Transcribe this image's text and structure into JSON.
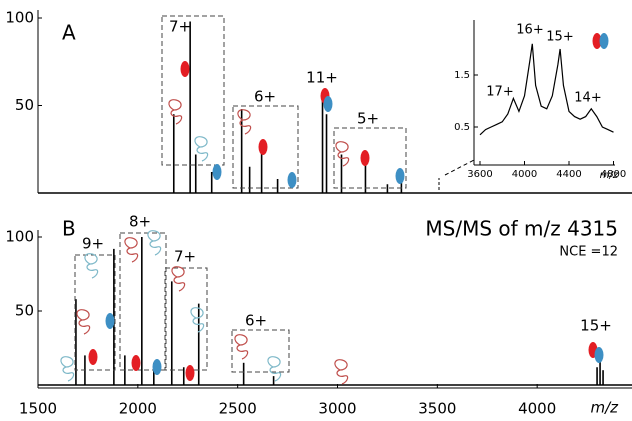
{
  "chart_data": [
    {
      "type": "stick",
      "panel_label": "A",
      "color": "#000000",
      "x": [
        2180,
        2262,
        2290,
        2370,
        2520,
        2560,
        2620,
        2700,
        2925,
        2945,
        3020,
        3140,
        3250,
        3320
      ],
      "values": [
        45,
        98,
        22,
        12,
        48,
        15,
        25,
        8,
        58,
        45,
        22,
        20,
        5,
        8
      ],
      "xlim": [
        1500,
        4500
      ],
      "ylim": [
        0,
        100
      ],
      "yticks": [
        50,
        100
      ],
      "annotations": [
        "7+",
        "6+",
        "11+",
        "5+"
      ]
    },
    {
      "type": "stick",
      "panel_label": "B",
      "color": "#000000",
      "title": "MS/MS of m/z 4315",
      "subtitle": "NCE =12",
      "x": [
        1690,
        1735,
        1880,
        1935,
        2020,
        2080,
        2170,
        2230,
        2305,
        2530,
        2680,
        4300,
        4315,
        4330
      ],
      "values": [
        58,
        20,
        92,
        20,
        100,
        15,
        70,
        12,
        55,
        15,
        6,
        12,
        16,
        10
      ],
      "xlim": [
        1500,
        4500
      ],
      "ylim": [
        0,
        100
      ],
      "yticks": [
        50,
        100
      ],
      "xticks": [
        1500,
        2000,
        2500,
        3000,
        3500,
        4000
      ],
      "x_label": "m/z",
      "annotations": [
        "9+",
        "8+",
        "7+",
        "6+",
        "15+"
      ]
    },
    {
      "type": "line",
      "color": "#000000",
      "x": [
        3600,
        3650,
        3700,
        3750,
        3800,
        3850,
        3900,
        3950,
        4000,
        4050,
        4070,
        4100,
        4150,
        4200,
        4250,
        4300,
        4320,
        4350,
        4400,
        4450,
        4500,
        4550,
        4600,
        4650,
        4700,
        4750,
        4800
      ],
      "values": [
        0.35,
        0.45,
        0.5,
        0.55,
        0.6,
        0.75,
        1.05,
        0.8,
        1.1,
        1.8,
        2.1,
        1.3,
        0.9,
        0.85,
        1.1,
        1.7,
        2.0,
        1.3,
        0.8,
        0.7,
        0.65,
        0.7,
        0.85,
        0.7,
        0.5,
        0.45,
        0.4
      ],
      "xlim": [
        3550,
        4820
      ],
      "ylim": [
        -0.2,
        2.5
      ],
      "xticks": [
        3600,
        4000,
        4400,
        4800
      ],
      "yticks": [
        0.5,
        1.5
      ],
      "x_label": "m/z",
      "annotations": [
        "17+",
        "16+",
        "15+",
        "14+"
      ]
    }
  ]
}
